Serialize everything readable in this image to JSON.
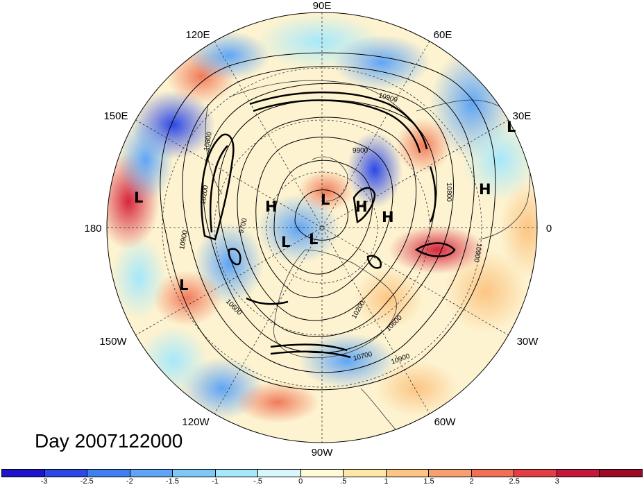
{
  "map": {
    "projection": "north-polar-stereographic",
    "longitude_labels": [
      "90E",
      "60E",
      "30E",
      "0",
      "30W",
      "60W",
      "90W",
      "120W",
      "150W",
      "180",
      "150E",
      "120E"
    ],
    "pressure_systems": [
      {
        "symbol": "L",
        "region": "far-east-pacific-coast"
      },
      {
        "symbol": "L",
        "region": "central-asia"
      },
      {
        "symbol": "H",
        "region": "siberia"
      },
      {
        "symbol": "L",
        "region": "arctic-ocean"
      },
      {
        "symbol": "L",
        "region": "arctic-canada"
      },
      {
        "symbol": "H",
        "region": "barents-sea"
      },
      {
        "symbol": "H",
        "region": "scandinavia-north"
      },
      {
        "symbol": "L",
        "region": "north-pacific"
      },
      {
        "symbol": "L",
        "region": "mediterranean"
      },
      {
        "symbol": "H",
        "region": "eastern-europe"
      }
    ],
    "contour_labels": [
      "10900",
      "9900",
      "10800",
      "9700",
      "10200",
      "10600",
      "10600",
      "10700",
      "10900",
      "10200",
      "10800",
      "10900",
      "10900"
    ]
  },
  "day_label": "Day 2007122000",
  "colorbar": {
    "colors": [
      "#1f14cc",
      "#2b47e6",
      "#3f7ff0",
      "#5fa5f5",
      "#7ec8f8",
      "#a6e8fb",
      "#d9f8fd",
      "#fffbd9",
      "#fde8a8",
      "#fcc583",
      "#f5a06e",
      "#ef7055",
      "#e33e44",
      "#c5173d",
      "#9b0a27"
    ],
    "tick_labels": [
      "-3",
      "-2.5",
      "-2",
      "-1.5",
      "-1",
      "-.5",
      "0",
      ".5",
      "1",
      "1.5",
      "2",
      "2.5",
      "3"
    ]
  }
}
